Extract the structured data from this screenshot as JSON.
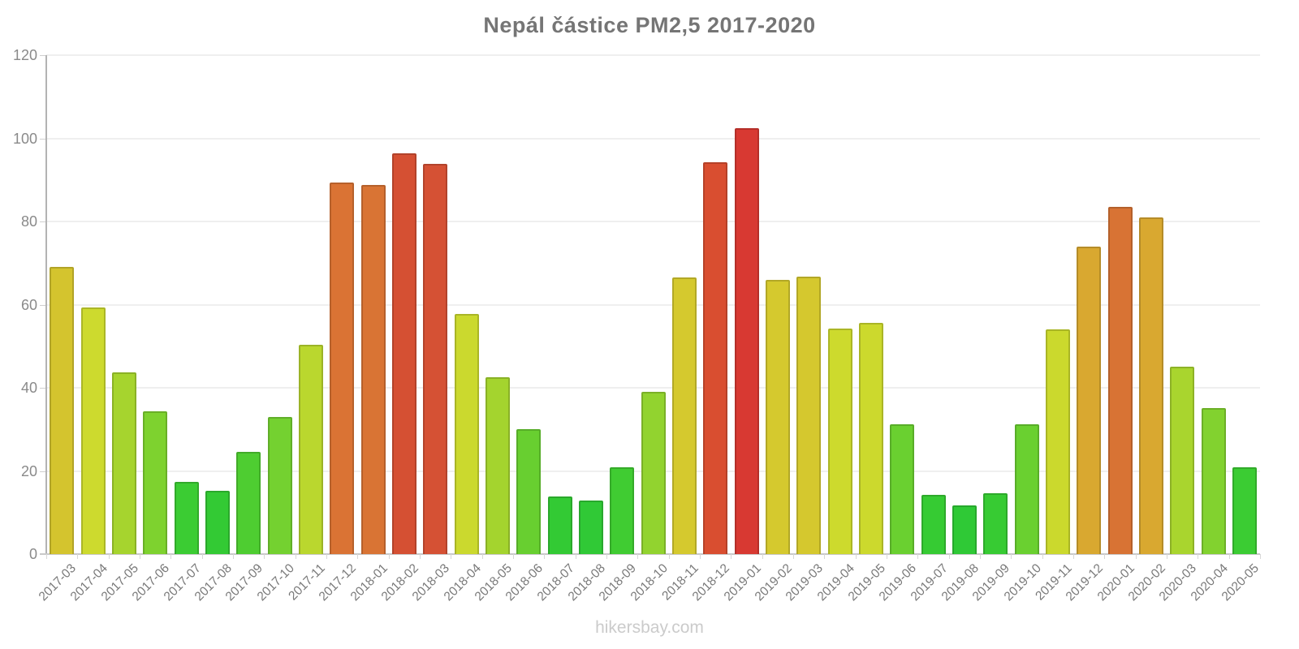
{
  "title": "Nepál částice PM2,5 2017-2020",
  "footer": "hikersbay.com",
  "chart_data": {
    "type": "bar",
    "title": "Nepál částice PM2,5 2017-2020",
    "xlabel": "",
    "ylabel": "",
    "ylim": [
      0,
      120
    ],
    "yticks": [
      0,
      20,
      40,
      60,
      80,
      100,
      120
    ],
    "grid": true,
    "legend": false,
    "categories": [
      "2017-03",
      "2017-04",
      "2017-05",
      "2017-06",
      "2017-07",
      "2017-08",
      "2017-09",
      "2017-10",
      "2017-11",
      "2017-12",
      "2018-01",
      "2018-02",
      "2018-03",
      "2018-04",
      "2018-05",
      "2018-06",
      "2018-07",
      "2018-08",
      "2018-09",
      "2018-10",
      "2018-11",
      "2018-12",
      "2019-01",
      "2019-02",
      "2019-03",
      "2019-04",
      "2019-05",
      "2019-06",
      "2019-07",
      "2019-08",
      "2019-09",
      "2019-10",
      "2019-11",
      "2019-12",
      "2020-01",
      "2020-02",
      "2020-03",
      "2020-04",
      "2020-05"
    ],
    "values": [
      69,
      59.3,
      43.8,
      34.4,
      17.3,
      15.2,
      24.5,
      33,
      50.4,
      89.3,
      88.7,
      96.3,
      93.8,
      57.8,
      42.5,
      30,
      13.9,
      12.9,
      20.8,
      39,
      66.5,
      94.3,
      102.5,
      66,
      66.8,
      54.2,
      55.6,
      31.3,
      14.2,
      11.8,
      14.6,
      31.3,
      54.1,
      74,
      83.6,
      81,
      45,
      35.2,
      20.8
    ],
    "bar_colors": [
      "#d4c42e",
      "#cdda2e",
      "#a6d42e",
      "#7ed22f",
      "#3bcc33",
      "#33ca34",
      "#4ecd31",
      "#74d130",
      "#bad72e",
      "#da7334",
      "#d97434",
      "#d55033",
      "#d55134",
      "#cbd92e",
      "#a4d42e",
      "#68cf30",
      "#33ca34",
      "#30c936",
      "#40cc32",
      "#92d32f",
      "#d5c92e",
      "#d94e30",
      "#d83932",
      "#d5c92e",
      "#d5c82e",
      "#cdda2d",
      "#ccd92d",
      "#6ad030",
      "#36cb33",
      "#2fc936",
      "#37cb33",
      "#6ad030",
      "#cbd92d",
      "#d9a830",
      "#d87334",
      "#d9a830",
      "#a9d52e",
      "#82d22f",
      "#3bcc33"
    ]
  },
  "colors": {
    "background": "#ffffff",
    "title_text": "#757575",
    "y_tick_text": "#8a8a8a",
    "x_tick_text": "#787878",
    "gridline": "#efefef",
    "y_axis_line": "#b3b3b3",
    "x_axis_line": "#c9c9c9",
    "watermark_text": "#cbcbcb"
  }
}
